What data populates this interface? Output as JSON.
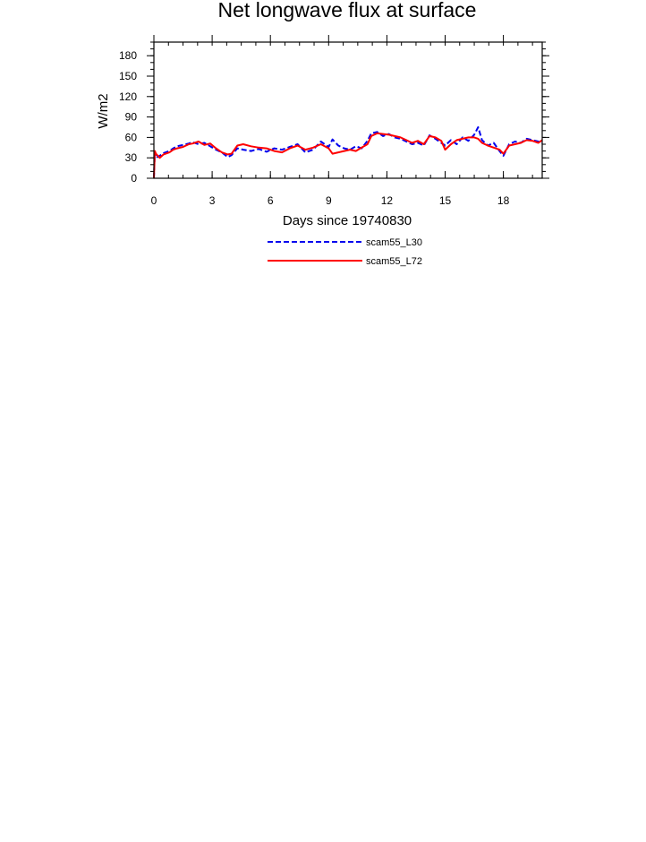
{
  "chart_data": {
    "type": "line",
    "title": "Net longwave flux at surface",
    "xlabel": "Days since 19740830",
    "ylabel": "W/m2",
    "xlim": [
      0,
      20
    ],
    "ylim": [
      0,
      200
    ],
    "xticks": [
      0,
      3,
      6,
      9,
      12,
      15,
      18
    ],
    "xtick_labels": [
      "0",
      "3",
      "6",
      "9",
      "12",
      "15",
      "18"
    ],
    "yticks": [
      0,
      30,
      60,
      90,
      120,
      150,
      180
    ],
    "ytick_labels": [
      "0",
      "30",
      "60",
      "90",
      "120",
      "150",
      "180"
    ],
    "grid": false,
    "legend_position": "bottom-center",
    "series": [
      {
        "name": "scam55_L30",
        "color": "#0000ee",
        "dash": "dashed",
        "x": [
          0,
          0.05,
          0.1,
          0.3,
          0.5,
          0.8,
          1.0,
          1.2,
          1.5,
          1.8,
          2.0,
          2.3,
          2.6,
          2.9,
          3.2,
          3.5,
          3.8,
          4.0,
          4.3,
          4.6,
          5.0,
          5.4,
          5.8,
          6.2,
          6.6,
          7.0,
          7.4,
          7.8,
          8.2,
          8.6,
          9.0,
          9.2,
          9.5,
          9.8,
          10.1,
          10.4,
          10.7,
          11.0,
          11.2,
          11.5,
          11.8,
          12.1,
          12.4,
          12.7,
          13.0,
          13.3,
          13.6,
          13.9,
          14.2,
          14.5,
          14.8,
          15.0,
          15.3,
          15.6,
          15.9,
          16.2,
          16.5,
          16.7,
          16.9,
          17.2,
          17.5,
          17.8,
          18.0,
          18.3,
          18.6,
          18.9,
          19.2,
          19.5,
          19.8,
          20.0
        ],
        "y": [
          0,
          38,
          30,
          33,
          37,
          40,
          44,
          47,
          49,
          51,
          53,
          50,
          52,
          47,
          42,
          38,
          31,
          34,
          44,
          42,
          40,
          43,
          39,
          44,
          42,
          46,
          50,
          38,
          42,
          54,
          46,
          57,
          48,
          44,
          42,
          47,
          44,
          55,
          66,
          68,
          62,
          65,
          60,
          58,
          54,
          50,
          52,
          48,
          63,
          58,
          52,
          48,
          56,
          50,
          60,
          55,
          64,
          75,
          56,
          48,
          52,
          40,
          33,
          50,
          54,
          52,
          58,
          56,
          54,
          52
        ]
      },
      {
        "name": "scam55_L72",
        "color": "#ff0000",
        "dash": "solid",
        "x": [
          0,
          0.05,
          0.1,
          0.3,
          0.5,
          0.8,
          1.0,
          1.2,
          1.5,
          1.8,
          2.0,
          2.3,
          2.6,
          2.9,
          3.2,
          3.5,
          3.8,
          4.0,
          4.3,
          4.6,
          5.0,
          5.4,
          5.8,
          6.2,
          6.6,
          7.0,
          7.4,
          7.8,
          8.2,
          8.6,
          9.0,
          9.2,
          9.5,
          9.8,
          10.1,
          10.4,
          10.7,
          11.0,
          11.2,
          11.5,
          11.8,
          12.1,
          12.4,
          12.7,
          13.0,
          13.3,
          13.6,
          13.9,
          14.2,
          14.5,
          14.8,
          15.0,
          15.3,
          15.6,
          15.9,
          16.2,
          16.5,
          16.7,
          16.9,
          17.2,
          17.5,
          17.8,
          18.0,
          18.3,
          18.6,
          18.9,
          19.2,
          19.5,
          19.8,
          20.0
        ],
        "y": [
          0,
          40,
          36,
          30,
          35,
          38,
          42,
          44,
          46,
          50,
          51,
          54,
          49,
          51,
          44,
          38,
          35,
          36,
          48,
          50,
          47,
          45,
          44,
          40,
          38,
          44,
          48,
          42,
          45,
          50,
          44,
          36,
          38,
          40,
          42,
          40,
          45,
          50,
          62,
          66,
          65,
          64,
          62,
          60,
          56,
          52,
          55,
          50,
          62,
          60,
          55,
          42,
          50,
          56,
          58,
          60,
          60,
          58,
          52,
          48,
          45,
          42,
          36,
          48,
          50,
          52,
          56,
          55,
          52,
          56
        ]
      }
    ]
  }
}
